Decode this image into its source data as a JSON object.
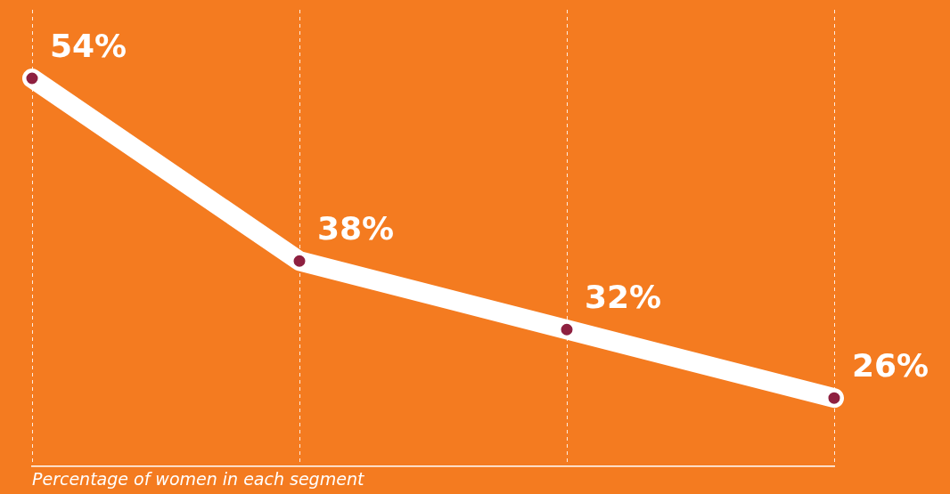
{
  "chart_data": {
    "type": "line",
    "xlabel": "Percentage of women in each segment",
    "categories": [
      null,
      null,
      null,
      null
    ],
    "series": [
      {
        "color": "#ffffff",
        "values": [
          54,
          38,
          32,
          26
        ],
        "value_labels": [
          "54%",
          "38%",
          "32%",
          "26%"
        ]
      }
    ],
    "grid": "x",
    "marker": "circle",
    "line_style": "solid",
    "legend": false,
    "tick_labels": false
  }
}
